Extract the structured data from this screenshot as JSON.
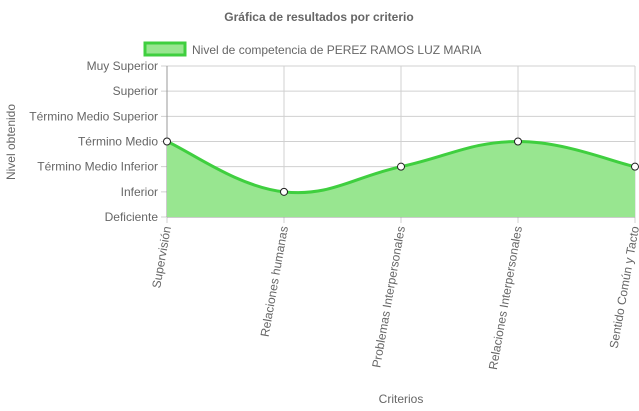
{
  "chart_data": {
    "type": "area",
    "title": "Gráfica de resultados por criterio",
    "xlabel": "Criterios",
    "ylabel": "Nivel obtenido",
    "categories": [
      "Supervisión",
      "Relaciones humanas",
      "Problemas Interpersonales",
      "Relaciones Interpersonales",
      "Sentido Común y Tacto"
    ],
    "y_levels": [
      "Deficiente",
      "Inferior",
      "Término Medio Inferior",
      "Término Medio",
      "Término Medio Superior",
      "Superior",
      "Muy Superior"
    ],
    "ylim": [
      0,
      6
    ],
    "series": [
      {
        "name": "Nivel de competencia de PEREZ RAMOS LUZ MARIA",
        "values": [
          3,
          1,
          2,
          3,
          2
        ],
        "value_labels": [
          "Término Medio",
          "Inferior",
          "Término Medio Inferior",
          "Término Medio",
          "Término Medio Inferior"
        ]
      }
    ],
    "legend_position": "top",
    "grid": true,
    "colors": {
      "fill": "#98e690",
      "line": "#3fcf3f",
      "point_border": "#222222",
      "point_fill": "#ffffff",
      "grid": "#d0d0d0"
    }
  }
}
